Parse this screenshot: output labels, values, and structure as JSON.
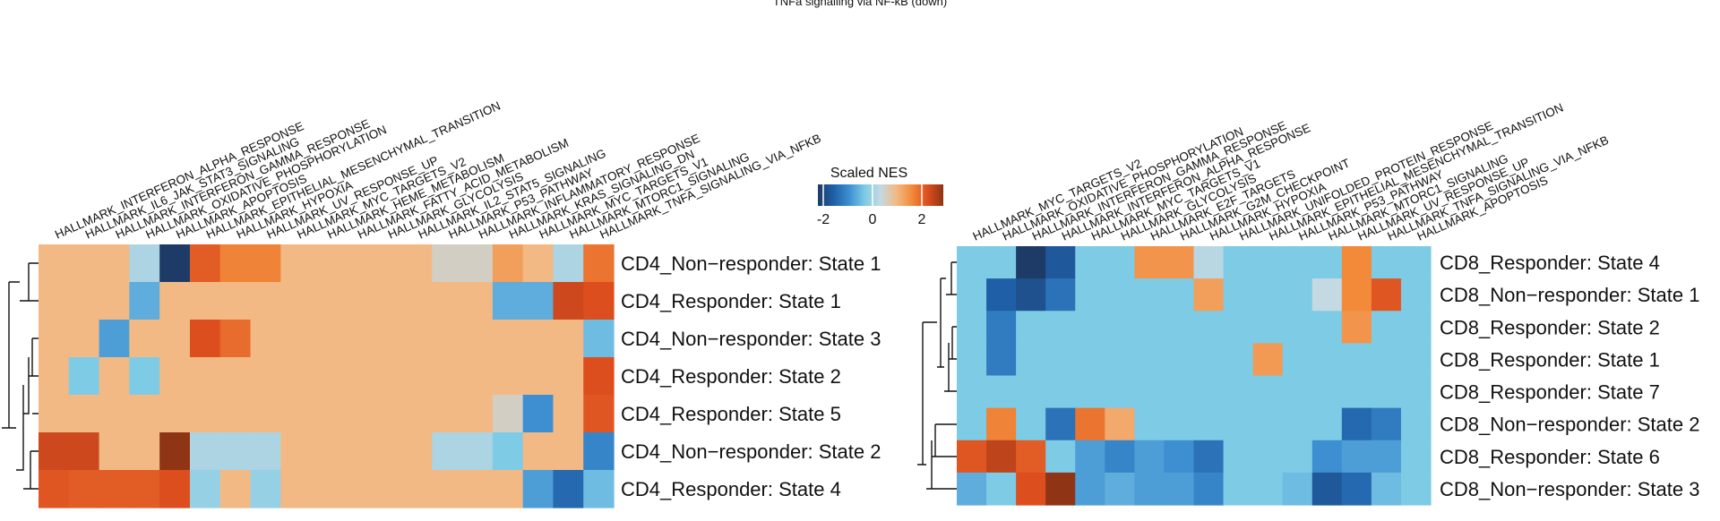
{
  "top_text": "TNFa signalling via NF-kB (down)",
  "legend": {
    "title": "Scaled NES",
    "ticks": [
      "-2",
      "0",
      "2"
    ],
    "tick_values": [
      -2,
      0,
      2
    ],
    "colors": [
      "#1d3b66",
      "#1f5fa8",
      "#3d8fd1",
      "#7ecbe6",
      "#c4d9e2",
      "#f2b985",
      "#f28a3a",
      "#dd4e1f",
      "#8f3414"
    ]
  },
  "chart_data": [
    {
      "type": "heatmap",
      "name_hidden": true,
      "columns": [
        "HALLMARK_INTERFERON_ALPHA_RESPONSE",
        "HALLMARK_IL6_JAK_STAT3_SIGNALING",
        "HALLMARK_INTERFERON_GAMMA_RESPONSE",
        "HALLMARK_OXIDATIVE_PHOSPHORYLATION",
        "HALLMARK_APOPTOSIS",
        "HALLMARK_EPITHELIAL_MESENCHYMAL_TRANSITION",
        "HALLMARK_HYPOXIA",
        "HALLMARK_UV_RESPONSE_UP",
        "HALLMARK_MYC_TARGETS_V2",
        "HALLMARK_HEME_METABOLISM",
        "HALLMARK_FATTY_ACID_METABOLISM",
        "HALLMARK_GLYCOLYSIS",
        "HALLMARK_IL2_STAT5_SIGNALING",
        "HALLMARK_P53_PATHWAY",
        "HALLMARK_INFLAMMATORY_RESPONSE",
        "HALLMARK_KRAS_SIGNALING_DN",
        "HALLMARK_MYC_TARGETS_V1",
        "HALLMARK_MTORC1_SIGNALING",
        "HALLMARK_TNFA_SIGNALING_VIA_NFKB"
      ],
      "rows": [
        "CD4_Non−responder: State 1",
        "CD4_Responder: State 1",
        "CD4_Non−responder: State 3",
        "CD4_Responder: State 2",
        "CD4_Responder: State 5",
        "CD4_Non−responder: State 2",
        "CD4_Responder: State 4"
      ],
      "values": [
        [
          0.3,
          0.3,
          0.3,
          -0.2,
          -2.0,
          1.8,
          1.3,
          1.3,
          0.3,
          0.3,
          0.3,
          0.3,
          0.3,
          0.1,
          0.1,
          0.8,
          0.3,
          -0.2,
          1.5
        ],
        [
          0.3,
          0.3,
          0.3,
          -0.8,
          0.3,
          0.3,
          0.3,
          0.3,
          0.3,
          0.3,
          0.3,
          0.3,
          0.3,
          0.3,
          0.3,
          -0.8,
          -0.8,
          2.2,
          2.0
        ],
        [
          0.3,
          0.3,
          -0.9,
          0.3,
          0.3,
          2.0,
          1.6,
          0.3,
          0.3,
          0.3,
          0.3,
          0.3,
          0.3,
          0.3,
          0.3,
          0.3,
          0.3,
          0.3,
          -0.7
        ],
        [
          0.3,
          -0.6,
          0.3,
          -0.6,
          0.3,
          0.3,
          0.3,
          0.3,
          0.3,
          0.3,
          0.3,
          0.3,
          0.3,
          0.3,
          0.3,
          0.3,
          0.3,
          0.3,
          2.0
        ],
        [
          0.3,
          0.3,
          0.3,
          0.3,
          0.3,
          0.3,
          0.3,
          0.3,
          0.3,
          0.3,
          0.3,
          0.3,
          0.3,
          0.3,
          0.3,
          0.1,
          -1.0,
          0.3,
          1.9
        ],
        [
          2.2,
          2.2,
          0.3,
          0.3,
          3.0,
          -0.2,
          -0.2,
          -0.2,
          0.3,
          0.3,
          0.3,
          0.3,
          0.3,
          -0.2,
          -0.2,
          -0.6,
          0.3,
          0.3,
          -1.1
        ],
        [
          1.9,
          1.8,
          1.8,
          1.8,
          2.0,
          -0.4,
          0.3,
          -0.4,
          0.3,
          0.3,
          0.3,
          0.3,
          0.3,
          0.3,
          0.3,
          0.3,
          -0.9,
          -1.4,
          -0.7
        ]
      ],
      "scale": [
        -2,
        2
      ]
    },
    {
      "type": "heatmap",
      "name_hidden": true,
      "columns": [
        "HALLMARK_MYC_TARGETS_V2",
        "HALLMARK_OXIDATIVE_PHOSPHORYLATION",
        "HALLMARK_INTERFERON_GAMMA_RESPONSE",
        "HALLMARK_INTERFERON_ALPHA_RESPONSE",
        "HALLMARK_MYC_TARGETS_V1",
        "HALLMARK_GLYCOLYSIS",
        "HALLMARK_E2F_TARGETS",
        "HALLMARK_G2M_CHECKPOINT",
        "HALLMARK_HYPOXIA",
        "HALLMARK_UNIFOLDED_PROTEIN_RESPONSE",
        "HALLMARK_EPITHELIAL_MESENCHYMAL_TRANSITION",
        "HALLMARK_P53_PATHWAY",
        "HALLMARK_MTORC1_SIGNALING",
        "HALLMARK_UV_RESPONSE_UP",
        "HALLMARK_TNFA_SIGNALING_VIA_NFKB",
        "HALLMARK_APOPTOSIS"
      ],
      "rows": [
        "CD8_Responder: State 4",
        "CD8_Non−responder: State 1",
        "CD8_Responder: State 2",
        "CD8_Responder: State 1",
        "CD8_Responder: State 7",
        "CD8_Non−responder: State 2",
        "CD8_Responder: State 6",
        "CD8_Non−responder: State 3"
      ],
      "values": [
        [
          -0.6,
          -0.6,
          -2.0,
          -1.6,
          -0.6,
          -0.6,
          1.0,
          1.0,
          -0.1,
          -0.6,
          -0.6,
          -0.6,
          -0.6,
          1.2,
          -0.6,
          -0.6
        ],
        [
          -0.6,
          -1.5,
          -1.7,
          -1.3,
          -0.6,
          -0.6,
          -0.6,
          -0.6,
          0.8,
          -0.6,
          -0.6,
          -0.6,
          0.0,
          1.2,
          1.9,
          -0.6
        ],
        [
          -0.6,
          -1.2,
          -0.6,
          -0.6,
          -0.6,
          -0.6,
          -0.6,
          -0.6,
          -0.6,
          -0.6,
          -0.6,
          -0.6,
          -0.6,
          1.0,
          -0.6,
          -0.6
        ],
        [
          -0.6,
          -1.2,
          -0.6,
          -0.6,
          -0.6,
          -0.6,
          -0.6,
          -0.6,
          -0.6,
          -0.6,
          0.9,
          -0.6,
          -0.6,
          -0.6,
          -0.6,
          -0.6
        ],
        [
          -0.6,
          -0.6,
          -0.6,
          -0.6,
          -0.6,
          -0.6,
          -0.6,
          -0.6,
          -0.6,
          -0.6,
          -0.6,
          -0.6,
          -0.6,
          -0.6,
          -0.6,
          -0.6
        ],
        [
          -0.6,
          1.3,
          -0.6,
          -1.3,
          1.5,
          0.6,
          -0.6,
          -0.6,
          -0.6,
          -0.6,
          -0.6,
          -0.6,
          -0.6,
          -1.4,
          -1.2,
          -0.6
        ],
        [
          1.9,
          2.4,
          1.8,
          -0.6,
          -0.9,
          -1.1,
          -0.9,
          -1.0,
          -1.3,
          -0.6,
          -0.6,
          -0.6,
          -1.0,
          -0.9,
          -0.9,
          -0.6
        ],
        [
          -0.8,
          -0.6,
          2.0,
          3.0,
          -0.9,
          -0.8,
          -0.9,
          -0.9,
          -1.1,
          -0.6,
          -0.6,
          -0.7,
          -1.6,
          -1.4,
          -0.7,
          -0.6
        ]
      ],
      "scale": [
        -2,
        2
      ]
    }
  ]
}
